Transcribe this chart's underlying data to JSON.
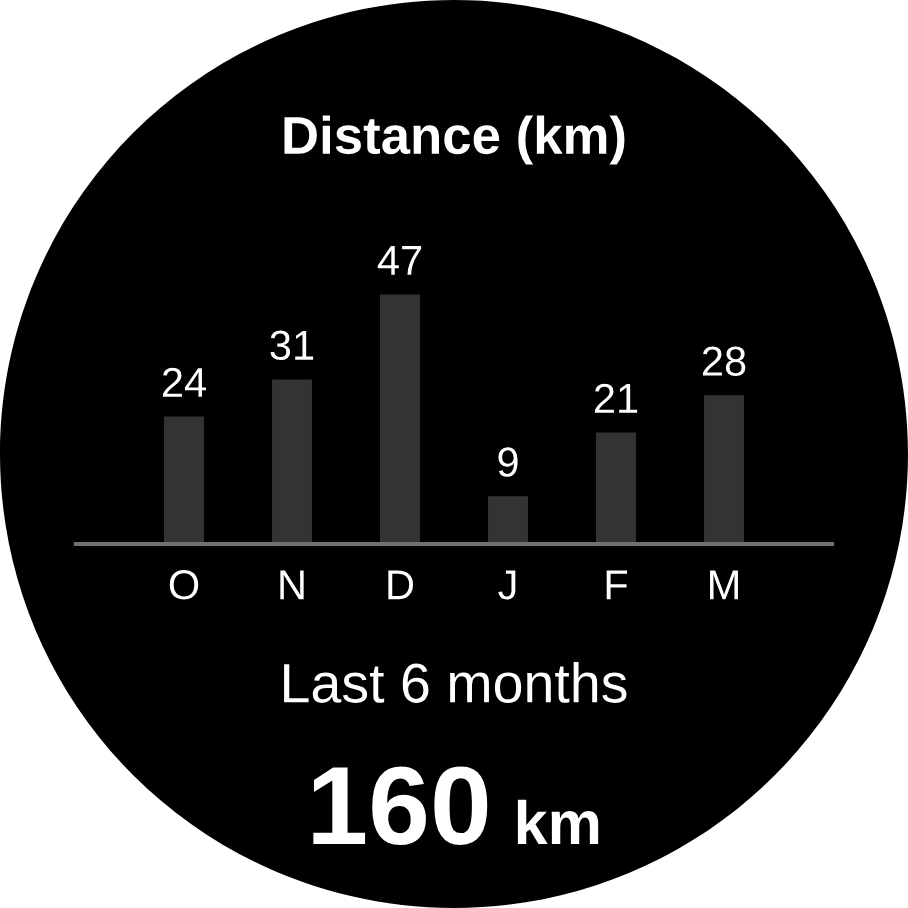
{
  "chart_data": {
    "type": "bar",
    "title": "Distance (km)",
    "categories": [
      "O",
      "N",
      "D",
      "J",
      "F",
      "M"
    ],
    "values": [
      24,
      31,
      47,
      9,
      21,
      28
    ],
    "color": "#333333",
    "tick_labels": "x",
    "data_labels": true,
    "annotations": [
      "Last 6 months",
      "160 km"
    ]
  }
}
